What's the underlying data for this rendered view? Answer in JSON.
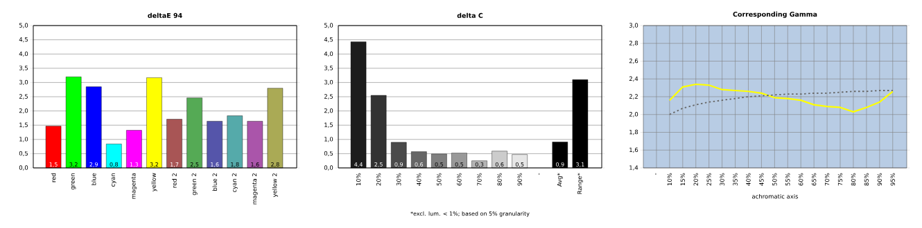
{
  "chart_data": [
    {
      "type": "bar",
      "title": "deltaE 94",
      "categories": [
        "red",
        "green",
        "blue",
        "cyan",
        "magenta",
        "yellow",
        "red 2",
        "green 2",
        "blue 2",
        "cyan 2",
        "magenta 2",
        "yellow 2"
      ],
      "values": [
        1.47,
        3.2,
        2.85,
        0.84,
        1.32,
        3.17,
        1.71,
        2.46,
        1.64,
        1.83,
        1.64,
        2.8
      ],
      "value_labels": [
        "1,5",
        "3,2",
        "2,9",
        "0,8",
        "1,3",
        "3,2",
        "1,7",
        "2,5",
        "1,6",
        "1,8",
        "1,6",
        "2,8"
      ],
      "colors": [
        "#ff0000",
        "#00ff00",
        "#0000ff",
        "#00ffff",
        "#ff00ff",
        "#ffff00",
        "#a85555",
        "#55aa55",
        "#5555aa",
        "#55aaaa",
        "#aa55aa",
        "#aaaa55"
      ],
      "ylim": [
        0,
        5
      ],
      "yticks": [
        {
          "value": 0,
          "label": "0,0"
        },
        {
          "value": 0.5,
          "label": "0,5"
        },
        {
          "value": 1,
          "label": "1,0"
        },
        {
          "value": 1.5,
          "label": "1,5"
        },
        {
          "value": 2,
          "label": "2,0"
        },
        {
          "value": 2.5,
          "label": "2,5"
        },
        {
          "value": 3,
          "label": "3,0"
        },
        {
          "value": 3.5,
          "label": "3,5"
        },
        {
          "value": 4,
          "label": "4,0"
        },
        {
          "value": 4.5,
          "label": "4,5"
        },
        {
          "value": 5,
          "label": "5,0"
        }
      ],
      "grid": "y"
    },
    {
      "type": "bar",
      "title": "delta C",
      "categories": [
        "10%",
        "20%",
        "30%",
        "40%",
        "50%",
        "60%",
        "70%",
        "80%",
        "90%",
        "-",
        "Avg*",
        "Range*"
      ],
      "values": [
        4.43,
        2.55,
        0.9,
        0.57,
        0.49,
        0.52,
        0.25,
        0.59,
        0.47,
        null,
        0.91,
        3.1
      ],
      "value_labels": [
        "4,4",
        "2,5",
        "0,9",
        "0,6",
        "0,5",
        "0,5",
        "0,3",
        "0,6",
        "0,5",
        null,
        "0,9",
        "3,1"
      ],
      "colors": [
        "#1c1c1c",
        "#333333",
        "#4a4a4a",
        "#666666",
        "#808080",
        "#999999",
        "#b3b3b3",
        "#cccccc",
        "#e6e6e6",
        "#000000",
        "#000000",
        "#000000"
      ],
      "ylim": [
        0,
        5
      ],
      "yticks": [
        {
          "value": 0,
          "label": "0,0"
        },
        {
          "value": 0.5,
          "label": "0,5"
        },
        {
          "value": 1,
          "label": "1,0"
        },
        {
          "value": 1.5,
          "label": "1,5"
        },
        {
          "value": 2,
          "label": "2,0"
        },
        {
          "value": 2.5,
          "label": "2,5"
        },
        {
          "value": 3,
          "label": "3,0"
        },
        {
          "value": 3.5,
          "label": "3,5"
        },
        {
          "value": 4,
          "label": "4,0"
        },
        {
          "value": 4.5,
          "label": "4,5"
        },
        {
          "value": 5,
          "label": "5,0"
        }
      ],
      "grid": "y",
      "annotations": [
        "*excl. lum. < 1%; based on 5% granularity"
      ]
    },
    {
      "type": "line",
      "title": "Corresponding Gamma",
      "xlabel": "achromatic axis",
      "categories": [
        "-",
        "10%",
        "15%",
        "20%",
        "25%",
        "30%",
        "35%",
        "40%",
        "45%",
        "50%",
        "55%",
        "60%",
        "65%",
        "70%",
        "75%",
        "80%",
        "85%",
        "90%",
        "95%"
      ],
      "series": [
        {
          "color": "#ffff00",
          "line_style": "solid",
          "values": [
            null,
            2.16,
            2.31,
            2.34,
            2.33,
            2.28,
            2.27,
            2.26,
            2.24,
            2.19,
            2.18,
            2.16,
            2.11,
            2.09,
            2.08,
            2.03,
            2.08,
            2.14,
            2.26
          ]
        },
        {
          "color": "#666666",
          "line_style": "dotted",
          "values": [
            null,
            2.0,
            2.07,
            2.11,
            2.14,
            2.16,
            2.18,
            2.2,
            2.21,
            2.22,
            2.23,
            2.23,
            2.24,
            2.24,
            2.25,
            2.26,
            2.26,
            2.27,
            2.27
          ]
        }
      ],
      "ylim": [
        1.4,
        3.0
      ],
      "yticks": [
        {
          "value": 1.4,
          "label": "1,4"
        },
        {
          "value": 1.6,
          "label": "1,6"
        },
        {
          "value": 1.8,
          "label": "1,8"
        },
        {
          "value": 2.0,
          "label": "2,0"
        },
        {
          "value": 2.2,
          "label": "2,2"
        },
        {
          "value": 2.4,
          "label": "2,4"
        },
        {
          "value": 2.6,
          "label": "2,6"
        },
        {
          "value": 2.8,
          "label": "2,8"
        },
        {
          "value": 3.0,
          "label": "3,0"
        }
      ],
      "grid": true,
      "marker": "none"
    }
  ]
}
